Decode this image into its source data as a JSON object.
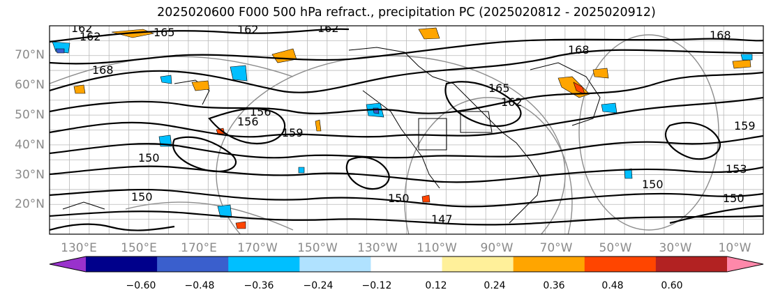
{
  "title": "2025020600 F000 500 hPa refract., precipitation PC (2025020812 - 2025020912)",
  "lat_labels": [
    "70°N",
    "60°N",
    "50°N",
    "40°N",
    "30°N",
    "20°N"
  ],
  "lon_labels": [
    "130°E",
    "150°E",
    "170°E",
    "170°W",
    "150°W",
    "130°W",
    "110°W",
    "90°W",
    "70°W",
    "50°W",
    "30°W",
    "10°W"
  ],
  "contour_labels": [
    "162",
    "165",
    "162",
    "162",
    "162",
    "168",
    "168",
    "168",
    "156",
    "159",
    "156",
    "150",
    "150",
    "150",
    "159",
    "150",
    "150",
    "153",
    "162",
    "165",
    "147"
  ],
  "colorbar": {
    "colors": [
      "#9932cc",
      "#00008b",
      "#3a5fcd",
      "#00bfff",
      "#b0e2ff",
      "#ffffff",
      "#fff09a",
      "#ffa500",
      "#ff4500",
      "#b22222",
      "#ff88aa"
    ],
    "tick_labels": [
      "−0.60",
      "−0.48",
      "−0.36",
      "−0.24",
      "−0.12",
      "0.12",
      "0.24",
      "0.36",
      "0.48",
      "0.60"
    ]
  }
}
